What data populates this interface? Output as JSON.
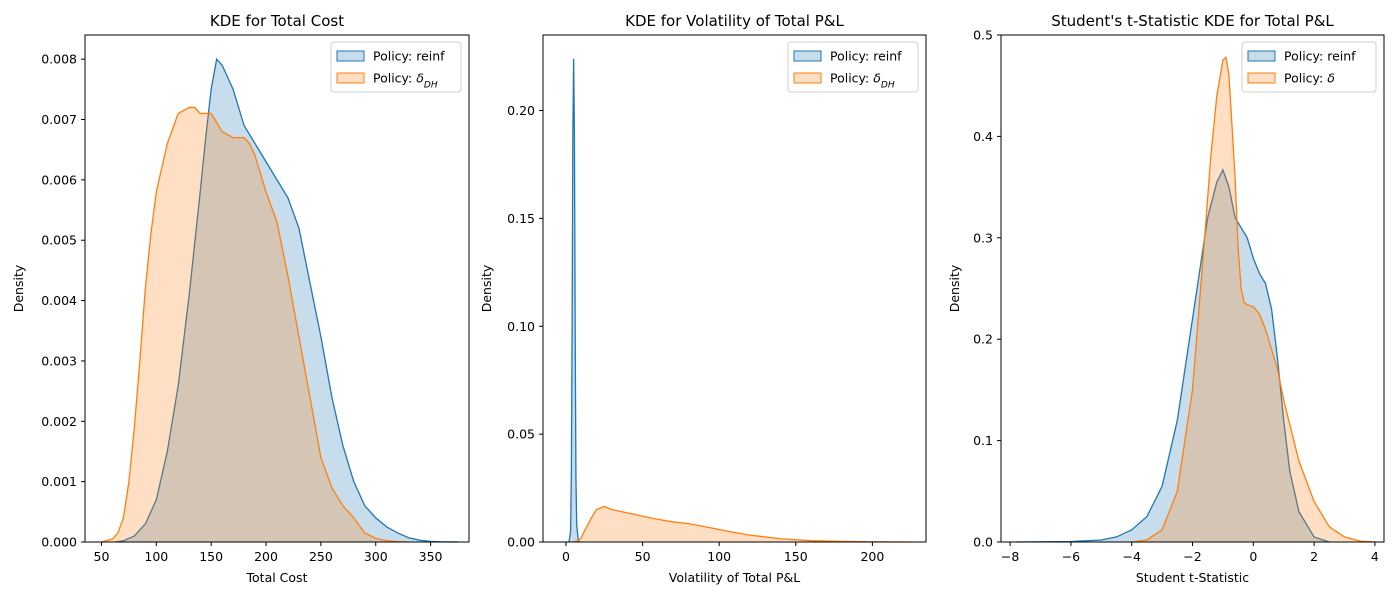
{
  "chart_data": [
    {
      "type": "area",
      "title": "KDE for Total Cost",
      "xlabel": "Total Cost",
      "ylabel": "Density",
      "xlim": [
        35,
        385
      ],
      "ylim": [
        0,
        0.0084
      ],
      "xticks": [
        50,
        100,
        150,
        200,
        250,
        300,
        350
      ],
      "yticks": [
        0.0,
        0.001,
        0.002,
        0.003,
        0.004,
        0.005,
        0.006,
        0.007,
        0.008
      ],
      "yticks_labels": [
        "0.000",
        "0.001",
        "0.002",
        "0.003",
        "0.004",
        "0.005",
        "0.006",
        "0.007",
        "0.008"
      ],
      "legend_position": "top-right",
      "series": [
        {
          "name": "Policy: reinf",
          "color": "#1f77b4",
          "x": [
            63,
            70,
            80,
            90,
            100,
            110,
            120,
            130,
            140,
            145,
            150,
            155,
            160,
            165,
            170,
            175,
            180,
            190,
            200,
            210,
            220,
            230,
            240,
            250,
            260,
            270,
            280,
            290,
            300,
            310,
            320,
            330,
            340,
            350,
            360,
            375
          ],
          "y": [
            0.0,
            2e-05,
            0.0001,
            0.0003,
            0.0007,
            0.0015,
            0.0026,
            0.0041,
            0.0058,
            0.0067,
            0.0075,
            0.008,
            0.0079,
            0.0077,
            0.0075,
            0.0072,
            0.0069,
            0.0066,
            0.0063,
            0.006,
            0.0057,
            0.0052,
            0.0043,
            0.0034,
            0.0024,
            0.0016,
            0.001,
            0.0006,
            0.0004,
            0.00025,
            0.00015,
            7e-05,
            3e-05,
            1e-05,
            3e-06,
            0.0
          ]
        },
        {
          "name": "Policy: δ_DH",
          "color": "#ff7f0e",
          "x": [
            50,
            60,
            65,
            70,
            75,
            80,
            85,
            90,
            95,
            100,
            110,
            120,
            130,
            135,
            140,
            150,
            160,
            170,
            175,
            180,
            185,
            190,
            200,
            210,
            220,
            230,
            240,
            250,
            260,
            270,
            280,
            290,
            300,
            310,
            320,
            330
          ],
          "y": [
            0.0,
            5e-05,
            0.00015,
            0.0004,
            0.001,
            0.0019,
            0.003,
            0.0042,
            0.0051,
            0.0058,
            0.0066,
            0.0071,
            0.0072,
            0.0072,
            0.0071,
            0.0071,
            0.0068,
            0.0067,
            0.0067,
            0.0067,
            0.0066,
            0.0064,
            0.0058,
            0.0053,
            0.0044,
            0.0034,
            0.0024,
            0.0014,
            0.0009,
            0.0006,
            0.0004,
            0.00015,
            6e-05,
            2e-05,
            5e-06,
            0.0
          ]
        }
      ]
    },
    {
      "type": "area",
      "title": "KDE for Volatility of Total P&L",
      "xlabel": "Volatility of Total P&L",
      "ylabel": "Density",
      "xlim": [
        -15,
        235
      ],
      "ylim": [
        0,
        0.235
      ],
      "xticks": [
        0,
        50,
        100,
        150,
        200
      ],
      "yticks": [
        0.0,
        0.05,
        0.1,
        0.15,
        0.2
      ],
      "yticks_labels": [
        "0.00",
        "0.05",
        "0.10",
        "0.15",
        "0.20"
      ],
      "legend_position": "top-right",
      "series": [
        {
          "name": "Policy: reinf",
          "color": "#1f77b4",
          "x": [
            2,
            3,
            3.5,
            4,
            4.5,
            5,
            5.5,
            6,
            6.5,
            7,
            8,
            9
          ],
          "y": [
            0.0,
            0.005,
            0.03,
            0.1,
            0.19,
            0.224,
            0.19,
            0.1,
            0.03,
            0.008,
            0.001,
            0.0
          ]
        },
        {
          "name": "Policy: δ_DH",
          "color": "#ff7f0e",
          "x": [
            5,
            8,
            10,
            12,
            15,
            18,
            20,
            25,
            30,
            40,
            50,
            60,
            70,
            80,
            90,
            100,
            110,
            120,
            140,
            160,
            180,
            200,
            225
          ],
          "y": [
            0.0,
            0.0006,
            0.002,
            0.005,
            0.009,
            0.013,
            0.015,
            0.0165,
            0.015,
            0.0135,
            0.012,
            0.0105,
            0.0093,
            0.0085,
            0.0072,
            0.0058,
            0.0044,
            0.0032,
            0.0015,
            0.0006,
            0.00025,
            8e-05,
            0.0
          ]
        }
      ]
    },
    {
      "type": "area",
      "title": "Student's t-Statistic KDE for Total P&L",
      "xlabel": "Student t-Statistic",
      "ylabel": "Density",
      "xlim": [
        -8.3,
        4.3
      ],
      "ylim": [
        0,
        0.5
      ],
      "xticks": [
        -8,
        -6,
        -4,
        -2,
        0,
        2,
        4
      ],
      "yticks": [
        0.0,
        0.1,
        0.2,
        0.3,
        0.4,
        0.5
      ],
      "yticks_labels": [
        "0.0",
        "0.1",
        "0.2",
        "0.3",
        "0.4",
        "0.5"
      ],
      "legend_position": "top-right",
      "series": [
        {
          "name": "Policy: reinf",
          "color": "#1f77b4",
          "x": [
            -7.8,
            -6,
            -5,
            -4.5,
            -4,
            -3.5,
            -3,
            -2.5,
            -2,
            -1.5,
            -1.2,
            -1.0,
            -0.8,
            -0.6,
            -0.4,
            -0.2,
            0.0,
            0.2,
            0.4,
            0.6,
            0.8,
            1.0,
            1.2,
            1.5,
            2.0,
            2.5
          ],
          "y": [
            0.0,
            0.0005,
            0.002,
            0.005,
            0.012,
            0.025,
            0.055,
            0.12,
            0.22,
            0.32,
            0.355,
            0.367,
            0.35,
            0.32,
            0.31,
            0.3,
            0.28,
            0.265,
            0.255,
            0.23,
            0.18,
            0.12,
            0.07,
            0.03,
            0.005,
            0.0
          ]
        },
        {
          "name": "Policy: δ",
          "color": "#ff7f0e",
          "x": [
            -4.0,
            -3.5,
            -3.0,
            -2.5,
            -2.0,
            -1.6,
            -1.4,
            -1.2,
            -1.0,
            -0.9,
            -0.8,
            -0.6,
            -0.5,
            -0.4,
            -0.3,
            -0.2,
            0.0,
            0.2,
            0.4,
            0.6,
            0.8,
            1.0,
            1.5,
            2.0,
            2.5,
            3.0,
            3.5,
            4.0
          ],
          "y": [
            0.0,
            0.002,
            0.012,
            0.05,
            0.15,
            0.3,
            0.38,
            0.44,
            0.475,
            0.478,
            0.46,
            0.36,
            0.29,
            0.25,
            0.236,
            0.234,
            0.232,
            0.225,
            0.21,
            0.19,
            0.17,
            0.14,
            0.08,
            0.04,
            0.015,
            0.005,
            0.001,
            0.0
          ]
        }
      ]
    }
  ]
}
